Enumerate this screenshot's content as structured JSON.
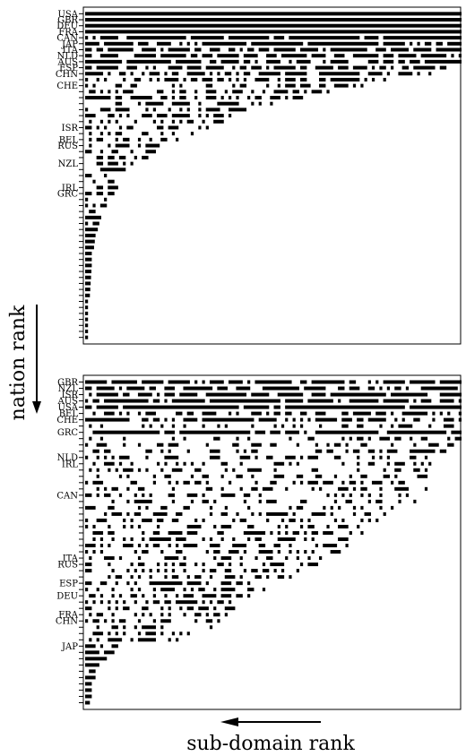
{
  "chart_data": [
    {
      "type": "scatter",
      "panel": "top",
      "n_rows": 55,
      "n_cols": 100,
      "labeled_rows": [
        {
          "row": 0,
          "label": "USA"
        },
        {
          "row": 1,
          "label": "GBR"
        },
        {
          "row": 2,
          "label": "DEU"
        },
        {
          "row": 3,
          "label": "FRA"
        },
        {
          "row": 4,
          "label": "CAN"
        },
        {
          "row": 5,
          "label": "JAP"
        },
        {
          "row": 6,
          "label": "ITA"
        },
        {
          "row": 7,
          "label": "NLD"
        },
        {
          "row": 8,
          "label": "AUS"
        },
        {
          "row": 9,
          "label": "ESP"
        },
        {
          "row": 10,
          "label": "CHN"
        },
        {
          "row": 12,
          "label": "CHE"
        },
        {
          "row": 19,
          "label": "ISR"
        },
        {
          "row": 21,
          "label": "BEL"
        },
        {
          "row": 22,
          "label": "RUS"
        },
        {
          "row": 25,
          "label": "NZL"
        },
        {
          "row": 29,
          "label": "IRL"
        },
        {
          "row": 30,
          "label": "GRC"
        }
      ],
      "row_extent": [
        100,
        100,
        100,
        100,
        100,
        100,
        100,
        100,
        100,
        96,
        92,
        80,
        74,
        66,
        58,
        52,
        46,
        41,
        37,
        33,
        29,
        26,
        23,
        20,
        17,
        15,
        13,
        11,
        10,
        9,
        8,
        7,
        6,
        5,
        4.5,
        4,
        3.6,
        3.2,
        2.8,
        2.6,
        2.4,
        2.2,
        2,
        1.9,
        1.8,
        1.7,
        1.6,
        1.5,
        1.4,
        1.3,
        1.2,
        1.2,
        1.1,
        1.1,
        1
      ],
      "row_density": [
        1,
        1,
        1,
        1,
        0.9,
        0.85,
        0.8,
        0.75,
        0.72,
        0.68,
        0.62,
        0.55,
        0.5,
        0.5,
        0.48,
        0.5,
        0.45,
        0.45,
        0.42,
        0.45,
        0.45,
        0.42,
        0.45,
        0.45,
        0.42,
        0.45,
        0.45,
        0.45,
        0.45,
        0.5,
        0.5,
        0.55,
        0.6,
        0.7,
        0.8,
        0.9,
        1,
        1,
        1,
        1,
        1,
        1,
        1,
        1,
        1,
        1,
        1,
        1,
        1,
        1,
        1,
        1,
        1,
        1,
        1
      ],
      "seed": 7,
      "xlim": [
        0,
        100
      ],
      "ylim": [
        0,
        55
      ]
    },
    {
      "type": "scatter",
      "panel": "bottom",
      "n_rows": 52,
      "n_cols": 100,
      "labeled_rows": [
        {
          "row": 0,
          "label": "GBR"
        },
        {
          "row": 1,
          "label": "NZL"
        },
        {
          "row": 2,
          "label": "ISR"
        },
        {
          "row": 3,
          "label": "AUS"
        },
        {
          "row": 4,
          "label": "USA"
        },
        {
          "row": 5,
          "label": "BEL"
        },
        {
          "row": 6,
          "label": "CHE"
        },
        {
          "row": 8,
          "label": "GRC"
        },
        {
          "row": 12,
          "label": "NLD"
        },
        {
          "row": 13,
          "label": "IRL"
        },
        {
          "row": 18,
          "label": "CAN"
        },
        {
          "row": 28,
          "label": "ITA"
        },
        {
          "row": 29,
          "label": "RUS"
        },
        {
          "row": 32,
          "label": "ESP"
        },
        {
          "row": 34,
          "label": "DEU"
        },
        {
          "row": 37,
          "label": "FRA"
        },
        {
          "row": 38,
          "label": "CHN"
        },
        {
          "row": 42,
          "label": "JAP"
        }
      ],
      "row_extent": [
        100,
        100,
        100,
        100,
        100,
        100,
        100,
        98,
        100,
        100,
        100,
        97,
        95,
        94,
        93,
        92,
        90,
        91,
        86,
        88,
        84,
        80,
        78,
        76,
        74,
        72,
        70,
        68,
        66,
        62,
        58,
        55,
        52,
        48,
        46,
        42,
        40,
        38,
        36,
        34,
        30,
        27,
        10,
        8,
        6,
        4,
        3,
        3,
        2,
        2,
        2,
        1.5
      ],
      "row_density": [
        0.85,
        0.75,
        0.8,
        0.85,
        0.9,
        0.6,
        0.7,
        0.4,
        0.9,
        0.4,
        0.35,
        0.4,
        0.35,
        0.35,
        0.4,
        0.4,
        0.35,
        0.35,
        0.4,
        0.35,
        0.4,
        0.45,
        0.4,
        0.4,
        0.45,
        0.4,
        0.45,
        0.45,
        0.45,
        0.45,
        0.45,
        0.45,
        0.45,
        0.45,
        0.4,
        0.45,
        0.45,
        0.4,
        0.45,
        0.4,
        0.45,
        0.4,
        0.8,
        0.8,
        0.8,
        0.8,
        0.8,
        0.8,
        0.8,
        0.8,
        0.8,
        1
      ],
      "seed": 13,
      "xlim": [
        0,
        100
      ],
      "ylim": [
        0,
        52
      ]
    }
  ],
  "axis": {
    "ylabel": "nation rank",
    "xlabel": "sub-domain rank"
  }
}
